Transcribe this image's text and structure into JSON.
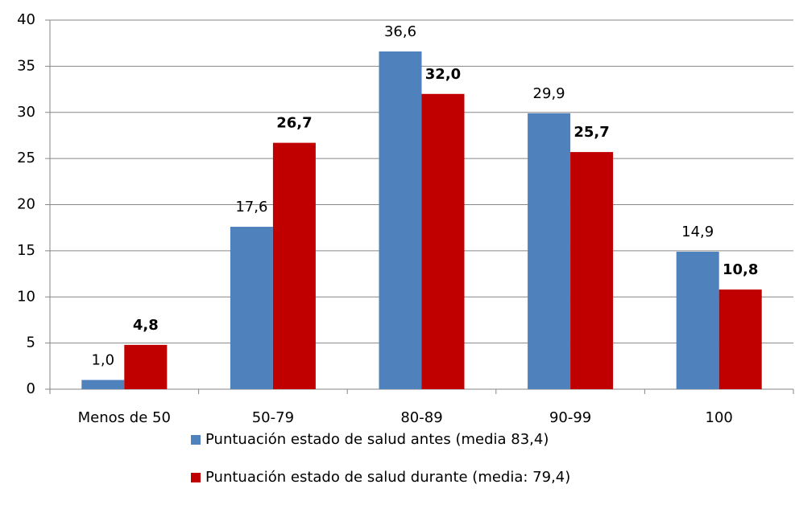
{
  "chart_data": {
    "type": "bar",
    "categories": [
      "Menos de 50",
      "50-79",
      "80-89",
      "90-99",
      "100"
    ],
    "series": [
      {
        "name": "Puntuación estado de salud antes (media 83,4)",
        "color": "#4f81bd",
        "values": [
          1.0,
          17.6,
          36.6,
          29.9,
          14.9
        ],
        "value_labels": [
          "1,0",
          "17,6",
          "36,6",
          "29,9",
          "14,9"
        ]
      },
      {
        "name": "Puntuación estado de salud durante (media: 79,4)",
        "color": "#c00000",
        "values": [
          4.8,
          26.7,
          32.0,
          25.7,
          10.8
        ],
        "value_labels": [
          "4,8",
          "26,7",
          "32,0",
          "25,7",
          "10,8"
        ]
      }
    ],
    "ylim": [
      0,
      40
    ],
    "yticks": [
      0,
      5,
      10,
      15,
      20,
      25,
      30,
      35,
      40
    ],
    "grid": true
  }
}
